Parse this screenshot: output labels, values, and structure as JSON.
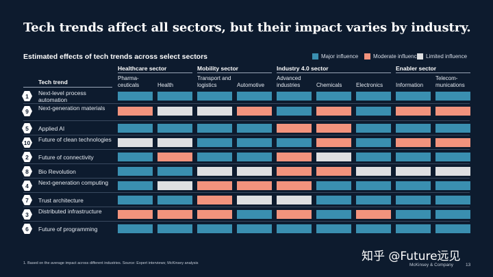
{
  "title": "Tech trends affect all sectors, but their impact varies by industry.",
  "chart_data": {
    "type": "heatmap",
    "title": "Estimated effects of tech trends across select sectors",
    "row_header": "Tech trend",
    "legend": [
      {
        "key": "major",
        "label": "Major influence",
        "color": "#3a8fb0"
      },
      {
        "key": "moderate",
        "label": "Moderate influence",
        "color": "#f2937d"
      },
      {
        "key": "limited",
        "label": "Limited influence",
        "color": "#dedfe1"
      }
    ],
    "sectors": [
      {
        "name": "Healthcare sector",
        "columns": [
          "Pharma-ceuticals",
          "Health"
        ]
      },
      {
        "name": "Mobility sector",
        "columns": [
          "Transport and logistics",
          "Automotive"
        ]
      },
      {
        "name": "Industry 4.0 sector",
        "columns": [
          "Advanced industries",
          "Chemicals",
          "Electronics"
        ]
      },
      {
        "name": "Enabler sector",
        "columns": [
          "Information",
          "Telecom-munications"
        ]
      }
    ],
    "columns": [
      "Pharma-ceuticals",
      "Health",
      "Transport and logistics",
      "Automotive",
      "Advanced industries",
      "Chemicals",
      "Electronics",
      "Information",
      "Telecom-munications"
    ],
    "rows": [
      {
        "num": "1",
        "label": "Next-level process automation",
        "values": [
          "major",
          "major",
          "major",
          "major",
          "major",
          "major",
          "major",
          "major",
          "major"
        ]
      },
      {
        "num": "9",
        "label": "Next-generation materials",
        "values": [
          "moderate",
          "limited",
          "limited",
          "moderate",
          "major",
          "moderate",
          "major",
          "moderate",
          "moderate"
        ]
      },
      {
        "num": "5",
        "label": "Applied AI",
        "values": [
          "major",
          "major",
          "major",
          "major",
          "moderate",
          "moderate",
          "major",
          "major",
          "major"
        ]
      },
      {
        "num": "10",
        "label": "Future of clean technologies",
        "values": [
          "limited",
          "limited",
          "major",
          "major",
          "major",
          "moderate",
          "major",
          "moderate",
          "moderate"
        ]
      },
      {
        "num": "2",
        "label": "Future of connectivity",
        "values": [
          "major",
          "moderate",
          "major",
          "major",
          "moderate",
          "limited",
          "major",
          "major",
          "major"
        ]
      },
      {
        "num": "8",
        "label": "Bio Revolution",
        "values": [
          "major",
          "major",
          "limited",
          "limited",
          "moderate",
          "moderate",
          "limited",
          "limited",
          "limited"
        ]
      },
      {
        "num": "4",
        "label": "Next-generation computing",
        "values": [
          "major",
          "limited",
          "moderate",
          "moderate",
          "moderate",
          "major",
          "major",
          "major",
          "major"
        ]
      },
      {
        "num": "7",
        "label": "Trust architecture",
        "values": [
          "major",
          "major",
          "moderate",
          "limited",
          "limited",
          "major",
          "major",
          "major",
          "major"
        ]
      },
      {
        "num": "3",
        "label": "Distributed infrastructure",
        "values": [
          "moderate",
          "moderate",
          "moderate",
          "major",
          "moderate",
          "major",
          "moderate",
          "major",
          "major"
        ]
      },
      {
        "num": "6",
        "label": "Future of programming",
        "values": [
          "major",
          "major",
          "major",
          "major",
          "major",
          "major",
          "major",
          "major",
          "major"
        ]
      }
    ]
  },
  "footnote": "1. Based on the average impact across different industries. Source: Expert interviews; McKinsey analysis",
  "brand": "McKinsey & Company",
  "page_number": "13",
  "watermark": "知乎 @Future远见"
}
